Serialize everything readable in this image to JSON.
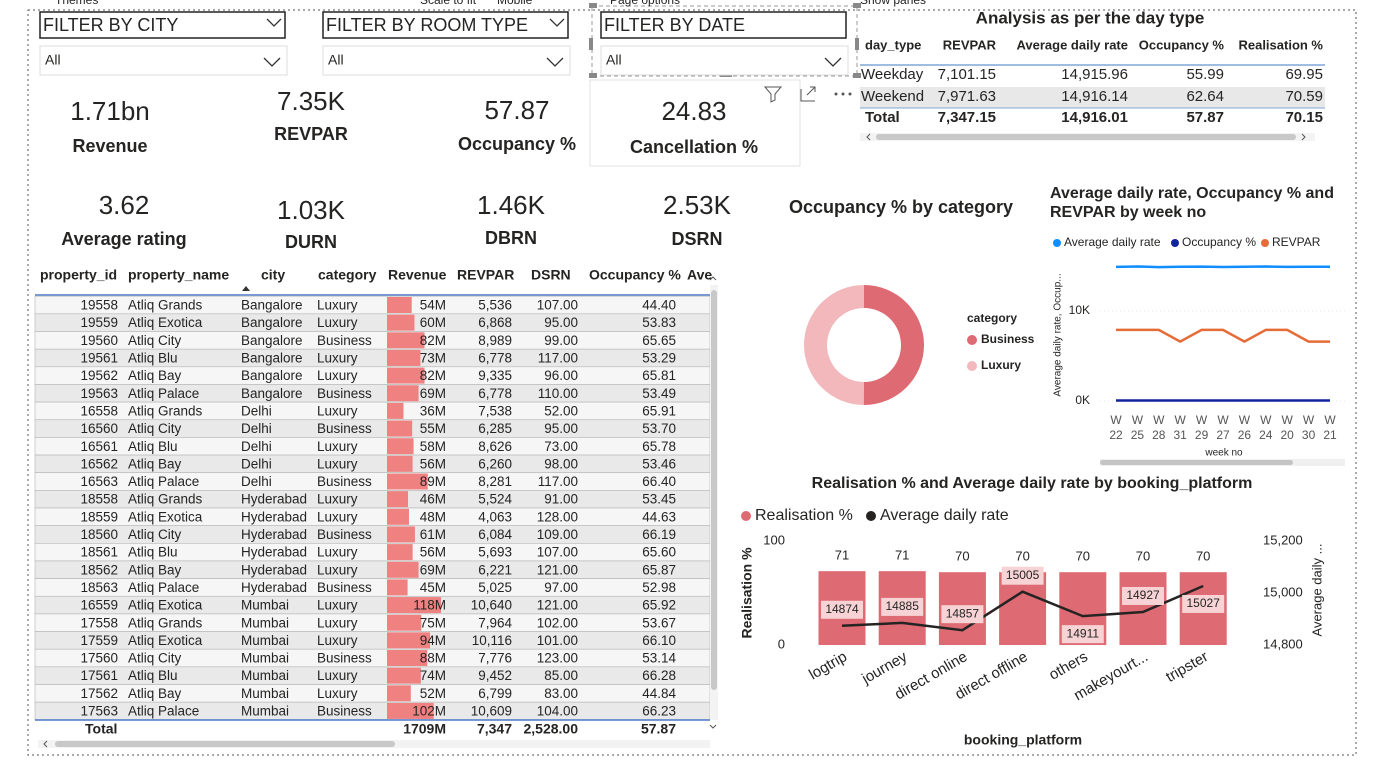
{
  "toolbar": [
    "Themes",
    "Scale to fit",
    "Mobile",
    "Page options",
    "Show panes"
  ],
  "filters": [
    {
      "title": "FILTER BY CITY",
      "selection": "All"
    },
    {
      "title": "FILTER BY ROOM TYPE",
      "selection": "All"
    },
    {
      "title": "FILTER BY DATE",
      "selection": "All"
    }
  ],
  "kpi_cards": [
    {
      "value": "1.71bn",
      "label": "Revenue"
    },
    {
      "value": "7.35K",
      "label": "REVPAR"
    },
    {
      "value": "57.87",
      "label": "Occupancy %"
    },
    {
      "value": "24.83",
      "label": "Cancellation %"
    },
    {
      "value": "3.62",
      "label": "Average rating"
    },
    {
      "value": "1.03K",
      "label": "DURN"
    },
    {
      "value": "1.46K",
      "label": "DBRN"
    },
    {
      "value": "2.53K",
      "label": "DSRN"
    }
  ],
  "day_type_table": {
    "title": "Analysis as per the day type",
    "columns": [
      "day_type",
      "REVPAR",
      "Average daily rate",
      "Occupancy %",
      "Realisation %"
    ],
    "rows": [
      [
        "Weekday",
        "7,101.15",
        "14,915.96",
        "55.99",
        "69.95"
      ],
      [
        "Weekend",
        "7,971.63",
        "14,916.14",
        "62.64",
        "70.59"
      ]
    ],
    "total": [
      "Total",
      "7,347.15",
      "14,916.01",
      "57.87",
      "70.15"
    ]
  },
  "property_table": {
    "columns": [
      "property_id",
      "property_name",
      "city",
      "category",
      "Revenue",
      "REVPAR",
      "DSRN",
      "Occupancy %",
      "Ave"
    ],
    "rows": [
      [
        "19558",
        "Atliq Grands",
        "Bangalore",
        "Luxury",
        "54M",
        "5,536",
        "107.00",
        "44.40"
      ],
      [
        "19559",
        "Atliq Exotica",
        "Bangalore",
        "Luxury",
        "60M",
        "6,868",
        "95.00",
        "53.83"
      ],
      [
        "19560",
        "Atliq City",
        "Bangalore",
        "Business",
        "82M",
        "8,989",
        "99.00",
        "65.65"
      ],
      [
        "19561",
        "Atliq Blu",
        "Bangalore",
        "Luxury",
        "73M",
        "6,778",
        "117.00",
        "53.29"
      ],
      [
        "19562",
        "Atliq Bay",
        "Bangalore",
        "Luxury",
        "82M",
        "9,335",
        "96.00",
        "65.81"
      ],
      [
        "19563",
        "Atliq Palace",
        "Bangalore",
        "Business",
        "69M",
        "6,778",
        "110.00",
        "53.49"
      ],
      [
        "16558",
        "Atliq Grands",
        "Delhi",
        "Luxury",
        "36M",
        "7,538",
        "52.00",
        "65.91"
      ],
      [
        "16560",
        "Atliq City",
        "Delhi",
        "Business",
        "55M",
        "6,285",
        "95.00",
        "53.70"
      ],
      [
        "16561",
        "Atliq Blu",
        "Delhi",
        "Luxury",
        "58M",
        "8,626",
        "73.00",
        "65.78"
      ],
      [
        "16562",
        "Atliq Bay",
        "Delhi",
        "Luxury",
        "56M",
        "6,260",
        "98.00",
        "53.46"
      ],
      [
        "16563",
        "Atliq Palace",
        "Delhi",
        "Business",
        "89M",
        "8,281",
        "117.00",
        "66.40"
      ],
      [
        "18558",
        "Atliq Grands",
        "Hyderabad",
        "Luxury",
        "46M",
        "5,524",
        "91.00",
        "53.45"
      ],
      [
        "18559",
        "Atliq Exotica",
        "Hyderabad",
        "Luxury",
        "48M",
        "4,063",
        "128.00",
        "44.63"
      ],
      [
        "18560",
        "Atliq City",
        "Hyderabad",
        "Business",
        "61M",
        "6,084",
        "109.00",
        "66.19"
      ],
      [
        "18561",
        "Atliq Blu",
        "Hyderabad",
        "Luxury",
        "56M",
        "5,693",
        "107.00",
        "65.60"
      ],
      [
        "18562",
        "Atliq Bay",
        "Hyderabad",
        "Luxury",
        "69M",
        "6,221",
        "121.00",
        "65.87"
      ],
      [
        "18563",
        "Atliq Palace",
        "Hyderabad",
        "Business",
        "45M",
        "5,025",
        "97.00",
        "52.98"
      ],
      [
        "16559",
        "Atliq Exotica",
        "Mumbai",
        "Luxury",
        "118M",
        "10,640",
        "121.00",
        "65.92"
      ],
      [
        "17558",
        "Atliq Grands",
        "Mumbai",
        "Luxury",
        "75M",
        "7,964",
        "102.00",
        "53.67"
      ],
      [
        "17559",
        "Atliq Exotica",
        "Mumbai",
        "Luxury",
        "94M",
        "10,116",
        "101.00",
        "66.10"
      ],
      [
        "17560",
        "Atliq City",
        "Mumbai",
        "Business",
        "88M",
        "7,776",
        "123.00",
        "53.14"
      ],
      [
        "17561",
        "Atliq Blu",
        "Mumbai",
        "Luxury",
        "74M",
        "9,452",
        "85.00",
        "66.28"
      ],
      [
        "17562",
        "Atliq Bay",
        "Mumbai",
        "Luxury",
        "52M",
        "6,799",
        "83.00",
        "44.84"
      ],
      [
        "17563",
        "Atliq Palace",
        "Mumbai",
        "Business",
        "102M",
        "10,609",
        "104.00",
        "66.23"
      ]
    ],
    "revenue_bar_values": [
      54,
      60,
      82,
      73,
      82,
      69,
      36,
      55,
      58,
      56,
      89,
      46,
      48,
      61,
      56,
      69,
      45,
      118,
      75,
      94,
      88,
      74,
      52,
      102
    ],
    "total": [
      "Total",
      "1709M",
      "7,347",
      "2,528.00",
      "57.87"
    ]
  },
  "chart_data": [
    {
      "type": "donut",
      "title": "Occupancy % by category",
      "legend_title": "category",
      "categories": [
        "Business",
        "Luxury"
      ],
      "values": [
        58.0,
        57.8
      ],
      "colors": [
        "#DE6A73",
        "#F2B8BC"
      ]
    },
    {
      "type": "line",
      "title": "Average daily rate, Occupancy % and REVPAR by week no",
      "x_axis_label": "week no",
      "y_axis_label": "Average daily rate, Occup...",
      "categories": [
        "W 22",
        "W 25",
        "W 28",
        "W 31",
        "W 29",
        "W 27",
        "W 26",
        "W 24",
        "W 20",
        "W 30",
        "W 21"
      ],
      "series": [
        {
          "name": "Average daily rate",
          "color": "#118DFF",
          "values": [
            14900,
            14950,
            14880,
            14910,
            14930,
            14890,
            14920,
            14940,
            14900,
            14910,
            14920
          ]
        },
        {
          "name": "Occupancy %",
          "color": "#12239E",
          "values": [
            57,
            58,
            56,
            55,
            58,
            59,
            57,
            58,
            57,
            56,
            55
          ]
        },
        {
          "name": "REVPAR",
          "color": "#E66C37",
          "values": [
            7900,
            7900,
            7900,
            6600,
            7900,
            7900,
            6600,
            7900,
            7900,
            6600,
            6600
          ]
        }
      ],
      "ylim": [
        0,
        16000
      ],
      "yticks": [
        {
          "value": 0,
          "label": "0K"
        },
        {
          "value": 10000,
          "label": "10K"
        }
      ]
    },
    {
      "type": "combo",
      "title": "Realisation % and Average daily rate by booking_platform",
      "x_axis_label": "booking_platform",
      "y_axis_label": "Realisation %",
      "y2_axis_label": "Average daily ...",
      "categories": [
        "logtrip",
        "journey",
        "direct online",
        "direct offline",
        "others",
        "makeyourt...",
        "tripster"
      ],
      "series": [
        {
          "name": "Realisation %",
          "type": "bar",
          "color": "#DE6A73",
          "values": [
            71,
            71,
            70,
            70,
            70,
            70,
            70
          ]
        },
        {
          "name": "Average daily rate",
          "type": "line",
          "axis": "y2",
          "color": "#252423",
          "values": [
            14874,
            14885,
            14857,
            15005,
            14911,
            14927,
            15027
          ]
        }
      ],
      "ylim": [
        0,
        100
      ],
      "yticks": [
        0,
        100
      ],
      "y2lim": [
        14800,
        15200
      ],
      "y2ticks": [
        {
          "value": 14800,
          "label": "14,800"
        },
        {
          "value": 15000,
          "label": "15,000"
        },
        {
          "value": 15200,
          "label": "15,200"
        }
      ]
    }
  ]
}
